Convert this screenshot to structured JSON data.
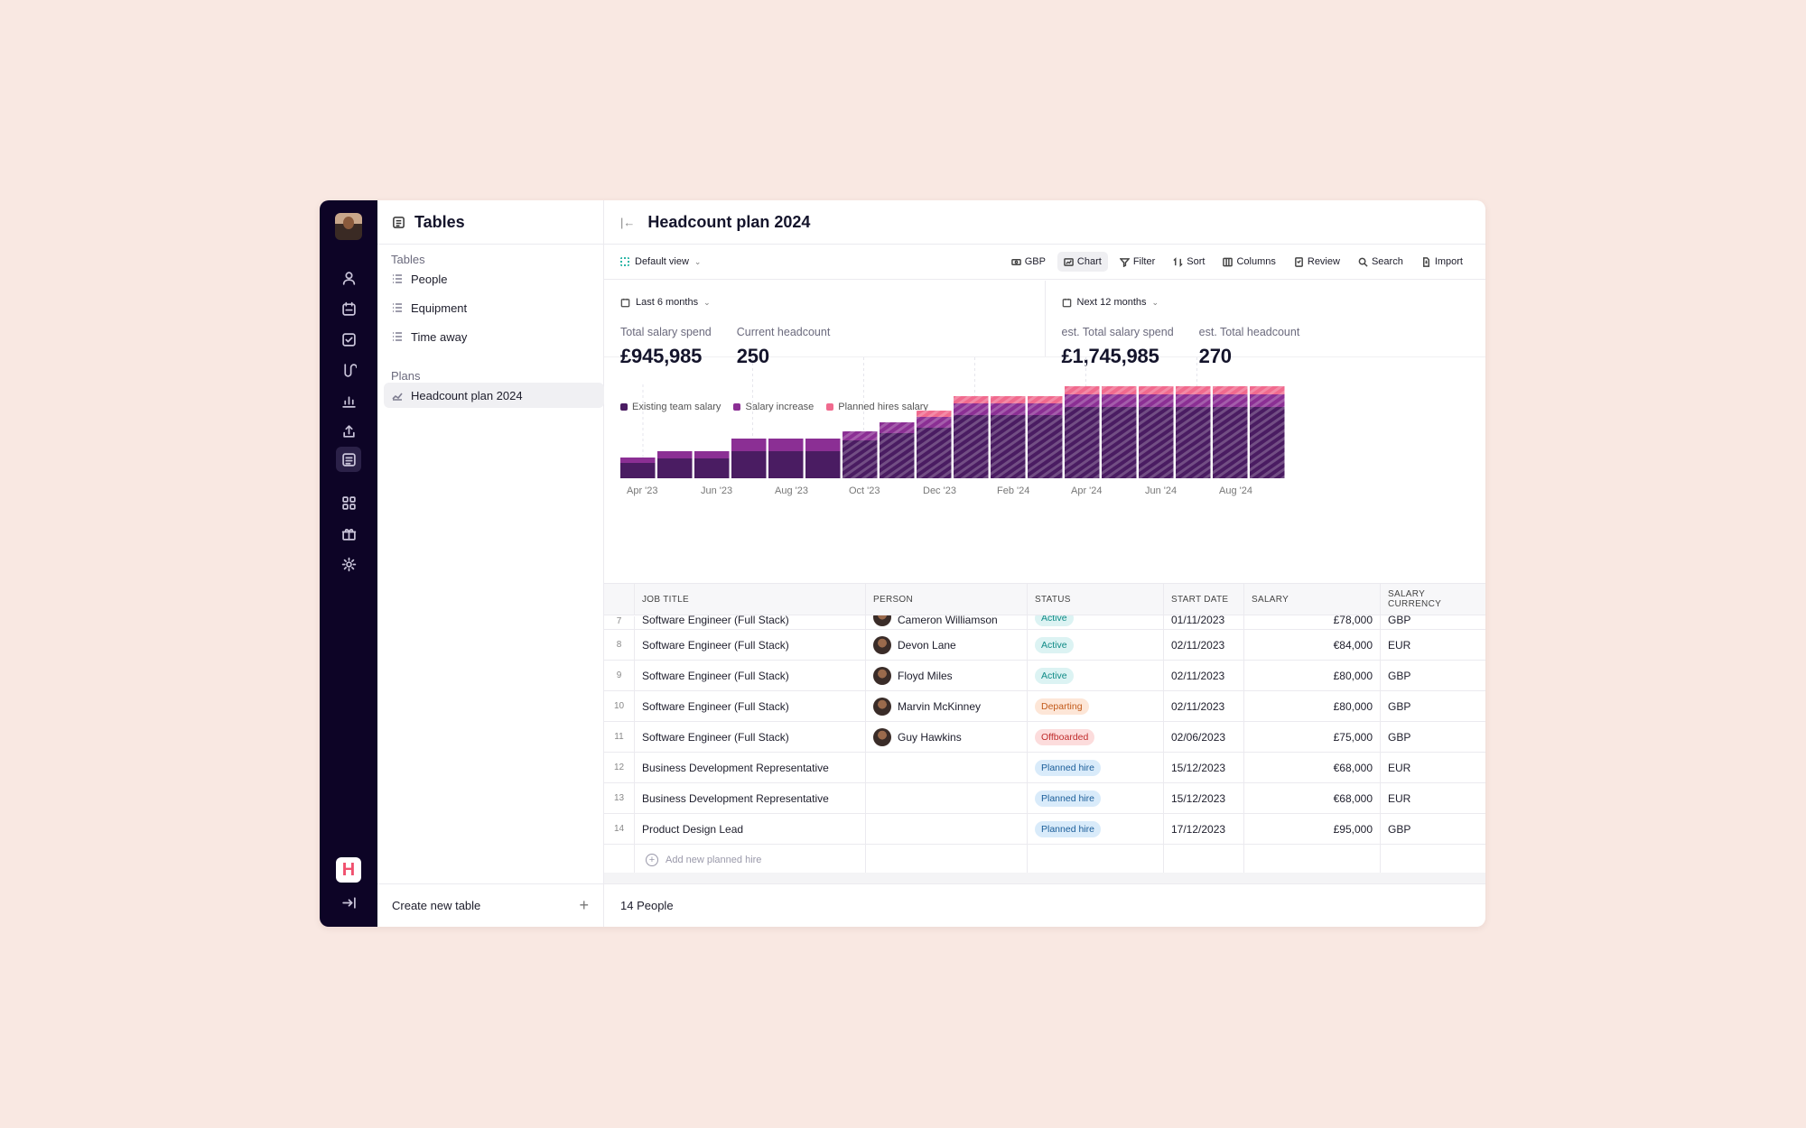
{
  "sidebar": {
    "header_title": "Tables",
    "tables_label": "Tables",
    "tables": [
      "People",
      "Equipment",
      "Time away"
    ],
    "plans_label": "Plans",
    "plans": [
      "Headcount plan 2024"
    ],
    "footer_label": "Create new table",
    "brand_letter": "H"
  },
  "main": {
    "title": "Headcount plan 2024",
    "view": "Default view",
    "tools": [
      "GBP",
      "Chart",
      "Filter",
      "Sort",
      "Columns",
      "Review",
      "Search",
      "Import"
    ],
    "footer": "14 People"
  },
  "stats": {
    "left": {
      "period": "Last 6 months",
      "kpis": [
        {
          "label": "Total salary spend",
          "value": "£945,985"
        },
        {
          "label": "Current headcount",
          "value": "250"
        }
      ]
    },
    "right": {
      "period": "Next 12 months",
      "kpis": [
        {
          "label": "est. Total salary spend",
          "value": "£1,745,985"
        },
        {
          "label": "est. Total headcount",
          "value": "270"
        }
      ]
    }
  },
  "chart_data": {
    "type": "bar",
    "stacked": true,
    "title": "",
    "categories": [
      "Apr '23",
      "May '23",
      "Jun '23",
      "Jul '23",
      "Aug '23",
      "Sep '23",
      "Oct '23",
      "Nov '23",
      "Dec '23",
      "Jan '24",
      "Feb '24",
      "Mar '24",
      "Apr '24",
      "May '24",
      "Jun '24",
      "Jul '24",
      "Aug '24",
      "Sep '24"
    ],
    "tick_labels": [
      "Apr '23",
      "Jun '23",
      "Aug '23",
      "Oct '23",
      "Dec '23",
      "Feb '24",
      "Apr '24",
      "Jun '24",
      "Aug '24"
    ],
    "forecast_from_index": 6,
    "series": [
      {
        "name": "Existing team salary",
        "color": "#4a1c62",
        "values": [
          17,
          22,
          22,
          30,
          30,
          30,
          42,
          50,
          56,
          70,
          70,
          70,
          79,
          79,
          79,
          79,
          79,
          79
        ]
      },
      {
        "name": "Salary increase",
        "color": "#8b2f94",
        "values": [
          6,
          8,
          8,
          14,
          14,
          14,
          10,
          12,
          12,
          13,
          13,
          13,
          14,
          14,
          14,
          14,
          14,
          14
        ]
      },
      {
        "name": "Planned hires salary",
        "color": "#f06a8e",
        "values": [
          0,
          0,
          0,
          0,
          0,
          0,
          0,
          0,
          7,
          8,
          8,
          8,
          9,
          9,
          9,
          9,
          9,
          9
        ]
      }
    ]
  },
  "table": {
    "headers": [
      "JOB TITLE",
      "PERSON",
      "STATUS",
      "START DATE",
      "SALARY",
      "SALARY CURRENCY"
    ],
    "partial_row": {
      "num": "7",
      "job": "Software Engineer (Full Stack)",
      "person": "Cameron Williamson",
      "status": "Active",
      "date": "01/11/2023",
      "salary": "£78,000",
      "currency": "GBP"
    },
    "rows": [
      {
        "num": "8",
        "job": "Software Engineer (Full Stack)",
        "person": "Devon Lane",
        "status": "Active",
        "status_kind": "active",
        "date": "02/11/2023",
        "salary": "€84,000",
        "currency": "EUR"
      },
      {
        "num": "9",
        "job": "Software Engineer (Full Stack)",
        "person": "Floyd Miles",
        "status": "Active",
        "status_kind": "active",
        "date": "02/11/2023",
        "salary": "£80,000",
        "currency": "GBP"
      },
      {
        "num": "10",
        "job": "Software Engineer (Full Stack)",
        "person": "Marvin McKinney",
        "status": "Departing",
        "status_kind": "departing",
        "date": "02/11/2023",
        "salary": "£80,000",
        "currency": "GBP"
      },
      {
        "num": "11",
        "job": "Software Engineer (Full Stack)",
        "person": "Guy Hawkins",
        "status": "Offboarded",
        "status_kind": "offboarded",
        "date": "02/06/2023",
        "salary": "£75,000",
        "currency": "GBP"
      },
      {
        "num": "12",
        "job": "Business Development Representative",
        "person": "",
        "status": "Planned hire",
        "status_kind": "planned",
        "date": "15/12/2023",
        "salary": "€68,000",
        "currency": "EUR"
      },
      {
        "num": "13",
        "job": "Business Development Representative",
        "person": "",
        "status": "Planned hire",
        "status_kind": "planned",
        "date": "15/12/2023",
        "salary": "€68,000",
        "currency": "EUR"
      },
      {
        "num": "14",
        "job": "Product Design Lead",
        "person": "",
        "status": "Planned hire",
        "status_kind": "planned",
        "date": "17/12/2023",
        "salary": "£95,000",
        "currency": "GBP"
      }
    ],
    "add_label": "Add new planned hire"
  }
}
